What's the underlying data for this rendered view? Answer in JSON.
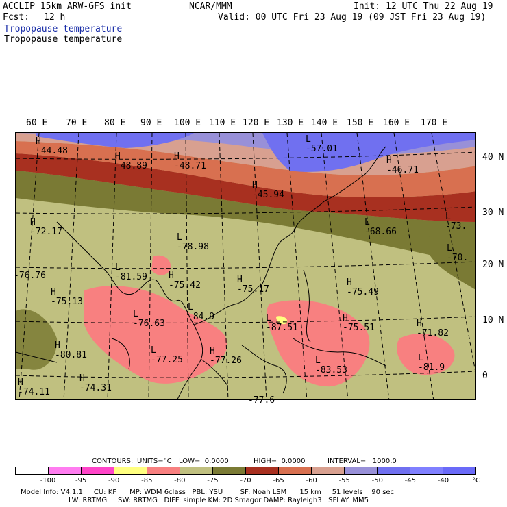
{
  "header": {
    "model": "ACCLIP 15km ARW-GFS init",
    "org": "NCAR/MMM",
    "init": "Init: 12 UTC Thu 22 Aug 19",
    "fcst_label": "Fcst:",
    "fcst_value": "12 h",
    "valid": "Valid: 00 UTC Fri 23 Aug 19 (09 JST Fri 23 Aug 19)",
    "field_title_1": "Tropopause temperature",
    "field_title_2": "Tropopause temperature"
  },
  "axes": {
    "lon_labels": [
      "60 E",
      "70 E",
      "80 E",
      "90 E",
      "100 E",
      "110 E",
      "120 E",
      "130 E",
      "140 E",
      "150 E",
      "160 E",
      "170 E"
    ],
    "lat_labels": [
      "40 N",
      "30 N",
      "20 N",
      "10 N",
      "0"
    ]
  },
  "map_labels": [
    {
      "kind": "H",
      "value": "-44.48"
    },
    {
      "kind": "H",
      "value": "-48.89"
    },
    {
      "kind": "H",
      "value": "-48.71"
    },
    {
      "kind": "L",
      "value": "-57.01"
    },
    {
      "kind": "H",
      "value": "-46.71"
    },
    {
      "kind": "H",
      "value": "-45.94"
    },
    {
      "kind": "H",
      "value": "-72.17"
    },
    {
      "kind": "L",
      "value": "-78.98"
    },
    {
      "kind": "L",
      "value": "-68.66"
    },
    {
      "kind": "L",
      "value": "-73."
    },
    {
      "kind": "L",
      "value": "-70."
    },
    {
      "kind": "",
      "value": "-76.76"
    },
    {
      "kind": "L",
      "value": "-81.59"
    },
    {
      "kind": "H",
      "value": "-75.42"
    },
    {
      "kind": "H",
      "value": "-75.17"
    },
    {
      "kind": "H",
      "value": "-75.49"
    },
    {
      "kind": "H",
      "value": "-75.13"
    },
    {
      "kind": "L",
      "value": "-76.63"
    },
    {
      "kind": "L",
      "value": "-84.9"
    },
    {
      "kind": "L",
      "value": "-87.51"
    },
    {
      "kind": "H",
      "value": "-75.51"
    },
    {
      "kind": "H",
      "value": "-71.82"
    },
    {
      "kind": "H",
      "value": "-80.81"
    },
    {
      "kind": "L",
      "value": "-77.25"
    },
    {
      "kind": "H",
      "value": "-77.26"
    },
    {
      "kind": "L",
      "value": "-83.53"
    },
    {
      "kind": "L",
      "value": "-81.9"
    },
    {
      "kind": "H",
      "value": "-74.11"
    },
    {
      "kind": "H",
      "value": "-74.31"
    },
    {
      "kind": "",
      "value": "-77.6"
    }
  ],
  "contour_info": {
    "contours": "CONTOURS:",
    "units": "UNITS=°C",
    "low": "LOW=  0.0000",
    "high": "HIGH=  0.0000",
    "interval": "INTERVAL=   1000.0"
  },
  "colorbar": {
    "colors": [
      "#ffffff",
      "#ff7cf0",
      "#ff44c8",
      "#ffff80",
      "#f88080",
      "#c0c080",
      "#7a7a34",
      "#a83020",
      "#d87050",
      "#d8a090",
      "#9890d8",
      "#7070f0",
      "#8080ff",
      "#6a6af8"
    ],
    "labels": [
      "-100",
      "-95",
      "-90",
      "-85",
      "-80",
      "-75",
      "-70",
      "-65",
      "-60",
      "-55",
      "-50",
      "-45",
      "-40"
    ],
    "unit": "°C"
  },
  "footer": {
    "line1": "Model Info: V4.1.1     CU: KF      MP: WDM 6class   PBL: YSU        SF: Noah LSM      15 km     51 levels    90 sec",
    "line2": "LW: RRTMG     SW: RRTMG   DIFF: simple KM: 2D Smagor DAMP: Rayleigh3   SFLAY: MM5"
  }
}
